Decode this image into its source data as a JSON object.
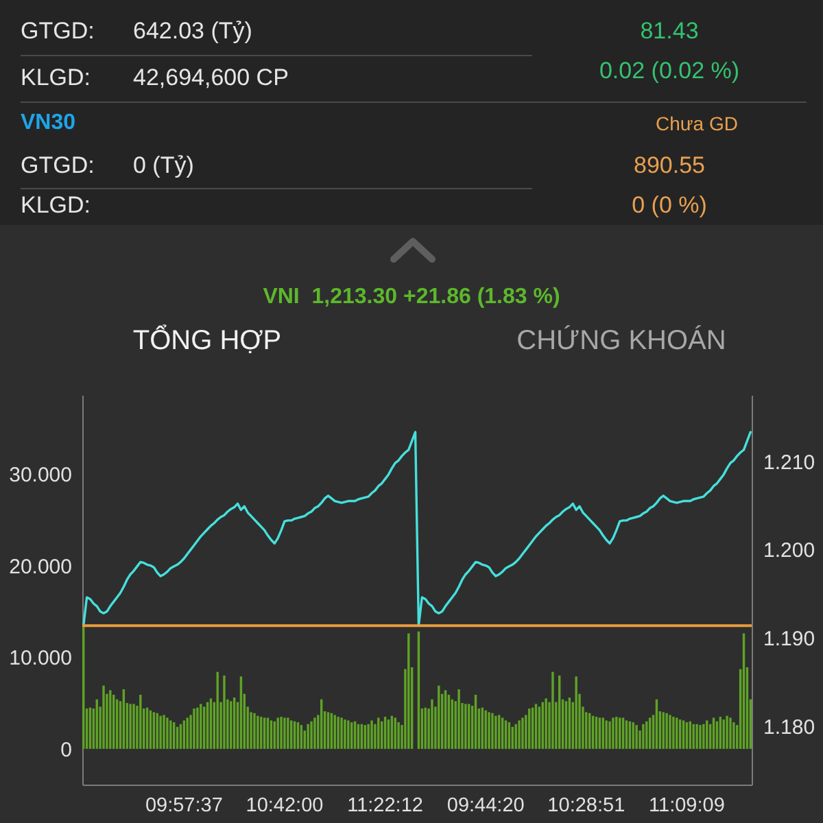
{
  "chart_data": [
    {
      "type": "other",
      "annotations": [
        "GTGD:",
        "642.03 (Tỷ)",
        "81.43",
        "KLGD:",
        "42,694,600 CP",
        "0.02 (0.02 %)",
        "VN30",
        "Chưa GD",
        "GTGD:",
        "0 (Tỷ)",
        "890.55",
        "KLGD:",
        "0 (0 %)"
      ]
    },
    {
      "type": "bar",
      "title": "VNI  1,213.30 +21.86 (1.83 %)",
      "annotations": [
        "TỔNG HỢP",
        "CHỨNG KHOÁN"
      ],
      "categories": [
        null,
        null,
        null,
        null,
        null,
        null,
        null,
        null,
        null,
        null,
        null,
        null,
        null,
        null,
        null,
        null,
        null,
        null,
        null,
        null,
        null,
        null,
        null,
        null,
        null,
        null,
        null,
        null,
        null,
        null,
        "09:57:37",
        null,
        null,
        null,
        null,
        null,
        null,
        null,
        null,
        null,
        null,
        null,
        null,
        null,
        null,
        null,
        null,
        null,
        null,
        null,
        null,
        null,
        null,
        null,
        null,
        null,
        null,
        null,
        null,
        null,
        "10:42:00",
        null,
        null,
        null,
        null,
        null,
        null,
        null,
        null,
        null,
        null,
        null,
        null,
        null,
        null,
        null,
        null,
        null,
        null,
        null,
        null,
        null,
        null,
        null,
        null,
        null,
        null,
        null,
        null,
        null,
        "11:22:12",
        null,
        null,
        null,
        null,
        null,
        null,
        null,
        null,
        null,
        null,
        null,
        null,
        null,
        null,
        null,
        null,
        null,
        null,
        null,
        null,
        null,
        null,
        null,
        null,
        null,
        null,
        null,
        null,
        null,
        "09:44:20",
        null,
        null,
        null,
        null,
        null,
        null,
        null,
        null,
        null,
        null,
        null,
        null,
        null,
        null,
        null,
        null,
        null,
        null,
        null,
        null,
        null,
        null,
        null,
        null,
        null,
        null,
        null,
        null,
        null,
        "10:28:51",
        null,
        null,
        null,
        null,
        null,
        null,
        null,
        null,
        null,
        null,
        null,
        null,
        null,
        null,
        null,
        null,
        null,
        null,
        null,
        null,
        null,
        null,
        null,
        null,
        null,
        null,
        null,
        null,
        null,
        "11:09:09",
        null,
        null,
        null,
        null,
        null,
        null,
        null,
        null,
        null,
        null,
        null,
        null,
        null,
        null,
        null,
        null,
        null,
        null,
        null
      ],
      "series": [
        {
          "type": "bar",
          "color": "#5fa326",
          "values": [
            13.4,
            4.4,
            4.5,
            4.4,
            5.4,
            4.6,
            6.9,
            6.0,
            6.4,
            5.9,
            5.4,
            5.2,
            6.5,
            5.0,
            4.9,
            4.9,
            4.7,
            5.9,
            4.4,
            4.5,
            4.2,
            4.0,
            3.9,
            3.6,
            3.7,
            3.4,
            3.1,
            2.9,
            2.4,
            2.7,
            3.1,
            3.4,
            3.7,
            4.4,
            4.5,
            4.9,
            4.6,
            5.1,
            5.5,
            5.1,
            8.4,
            5.1,
            8.0,
            5.4,
            5.2,
            5.6,
            5.1,
            7.9,
            6.0,
            4.6,
            4.0,
            3.9,
            3.6,
            3.5,
            3.4,
            3.4,
            3.1,
            3.0,
            3.4,
            3.5,
            3.4,
            3.4,
            3.1,
            3.0,
            2.9,
            2.6,
            2.0,
            2.7,
            3.0,
            3.4,
            3.7,
            5.4,
            4.1,
            4.0,
            3.9,
            3.7,
            3.5,
            3.4,
            3.2,
            3.1,
            2.9,
            3.0,
            2.7,
            2.7,
            2.6,
            2.7,
            3.1,
            2.7,
            3.4,
            3.0,
            3.5,
            3.2,
            3.6,
            3.4,
            2.9,
            2.6,
            8.7,
            12.6,
            8.9,
            null,
            12.8,
            4.4,
            4.5,
            4.4,
            5.4,
            4.6,
            6.9,
            6.0,
            6.4,
            5.9,
            5.4,
            5.2,
            6.5,
            5.0,
            4.9,
            4.9,
            4.7,
            5.9,
            4.4,
            4.5,
            4.2,
            4.0,
            3.9,
            3.6,
            3.7,
            3.4,
            3.1,
            2.9,
            2.4,
            2.7,
            3.1,
            3.4,
            3.7,
            4.4,
            4.5,
            4.9,
            4.6,
            5.1,
            5.5,
            5.1,
            8.4,
            5.1,
            8.0,
            5.4,
            5.2,
            5.6,
            5.1,
            7.9,
            6.0,
            4.6,
            4.0,
            3.9,
            3.6,
            3.5,
            3.4,
            3.4,
            3.1,
            3.0,
            3.4,
            3.5,
            3.4,
            3.4,
            3.1,
            3.0,
            2.9,
            2.6,
            2.0,
            2.7,
            3.0,
            3.4,
            3.7,
            5.4,
            4.1,
            4.0,
            3.9,
            3.7,
            3.5,
            3.4,
            3.2,
            3.1,
            2.9,
            3.0,
            2.7,
            2.7,
            2.6,
            2.7,
            3.1,
            2.7,
            3.4,
            3.0,
            3.5,
            3.2,
            3.6,
            3.4,
            2.9,
            2.6,
            8.7,
            12.6,
            8.9,
            5.4
          ]
        },
        {
          "type": "line",
          "axis": "y2",
          "color": "#45e0dc",
          "values": [
            1.1914,
            1.1946,
            1.1944,
            1.1939,
            1.1936,
            1.193,
            1.1928,
            1.193,
            1.1936,
            1.1941,
            1.1946,
            1.1951,
            1.1958,
            1.1966,
            1.1972,
            1.1976,
            1.1981,
            1.1986,
            1.1985,
            1.1983,
            1.1982,
            1.198,
            1.1974,
            1.197,
            1.1972,
            1.1975,
            1.1979,
            1.1981,
            1.1983,
            1.1986,
            1.199,
            1.1995,
            1.2,
            1.2005,
            1.201,
            1.2015,
            1.2019,
            1.2023,
            1.2027,
            1.203,
            1.2034,
            1.2037,
            1.2039,
            1.2043,
            1.2046,
            1.2048,
            1.2052,
            1.2045,
            1.2049,
            1.2042,
            1.2038,
            1.2034,
            1.203,
            1.2026,
            1.2022,
            1.2016,
            1.2011,
            1.2007,
            1.2013,
            1.2022,
            1.2032,
            1.2033,
            1.2033,
            1.2035,
            1.2036,
            1.2037,
            1.2038,
            1.2041,
            1.2043,
            1.2047,
            1.2049,
            1.2053,
            1.2058,
            1.2061,
            1.2058,
            1.2055,
            1.2054,
            1.2053,
            1.2054,
            1.2055,
            1.2055,
            1.2055,
            1.2057,
            1.2058,
            1.2059,
            1.206,
            1.2064,
            1.2067,
            1.2072,
            1.2075,
            1.208,
            1.2085,
            1.2092,
            1.2098,
            1.2101,
            1.2106,
            1.211,
            1.2113,
            1.2123,
            1.2133,
            1.1914,
            1.1946,
            1.1944,
            1.1939,
            1.1936,
            1.193,
            1.1928,
            1.193,
            1.1936,
            1.1941,
            1.1946,
            1.1951,
            1.1958,
            1.1966,
            1.1972,
            1.1976,
            1.1981,
            1.1986,
            1.1985,
            1.1983,
            1.1982,
            1.198,
            1.1974,
            1.197,
            1.1972,
            1.1975,
            1.1979,
            1.1981,
            1.1983,
            1.1986,
            1.199,
            1.1995,
            1.2,
            1.2005,
            1.201,
            1.2015,
            1.2019,
            1.2023,
            1.2027,
            1.203,
            1.2034,
            1.2037,
            1.2039,
            1.2043,
            1.2046,
            1.2048,
            1.2052,
            1.2045,
            1.2049,
            1.2042,
            1.2038,
            1.2034,
            1.203,
            1.2026,
            1.2022,
            1.2016,
            1.2011,
            1.2007,
            1.2013,
            1.2022,
            1.2032,
            1.2033,
            1.2033,
            1.2035,
            1.2036,
            1.2037,
            1.2038,
            1.2041,
            1.2043,
            1.2047,
            1.2049,
            1.2053,
            1.2058,
            1.2061,
            1.2058,
            1.2055,
            1.2054,
            1.2053,
            1.2054,
            1.2055,
            1.2055,
            1.2055,
            1.2057,
            1.2058,
            1.2059,
            1.206,
            1.2064,
            1.2067,
            1.2072,
            1.2075,
            1.208,
            1.2085,
            1.2092,
            1.2098,
            1.2101,
            1.2106,
            1.211,
            1.2113,
            1.2123,
            1.2133
          ]
        }
      ],
      "ylim": [
        -3.9,
        38.6
      ],
      "yticks": [
        0,
        {
          "value": 10,
          "label": "10.000"
        },
        {
          "value": 20,
          "label": "20.000"
        },
        {
          "value": 30,
          "label": "30.000"
        }
      ],
      "y2lim": [
        1.1734,
        1.2175
      ],
      "y2ticks": [
        {
          "value": 1.18,
          "label": "1.180"
        },
        {
          "value": 1.19,
          "label": "1.190"
        },
        {
          "value": 1.2,
          "label": "1.200"
        },
        {
          "value": 1.21,
          "label": "1.210"
        }
      ],
      "ref_lines": [
        {
          "axis": "y2",
          "value": 1.1914,
          "color": "#e99d3d"
        }
      ]
    }
  ]
}
